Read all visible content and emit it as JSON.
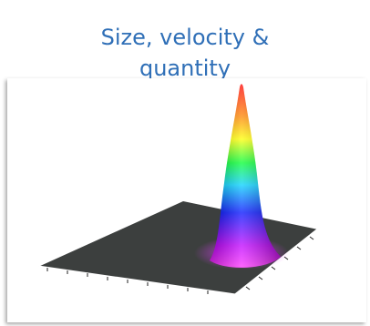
{
  "header": {
    "title_line1": "Size, velocity &",
    "title_line2": "quantity"
  },
  "figure": {
    "type": "3d-surface-plot",
    "surface_color": "#3c3f3e",
    "colormap": [
      "#ff00ff",
      "#0000ff",
      "#00c8ff",
      "#00ff00",
      "#ffff00",
      "#ff8000",
      "#ff0000"
    ]
  }
}
